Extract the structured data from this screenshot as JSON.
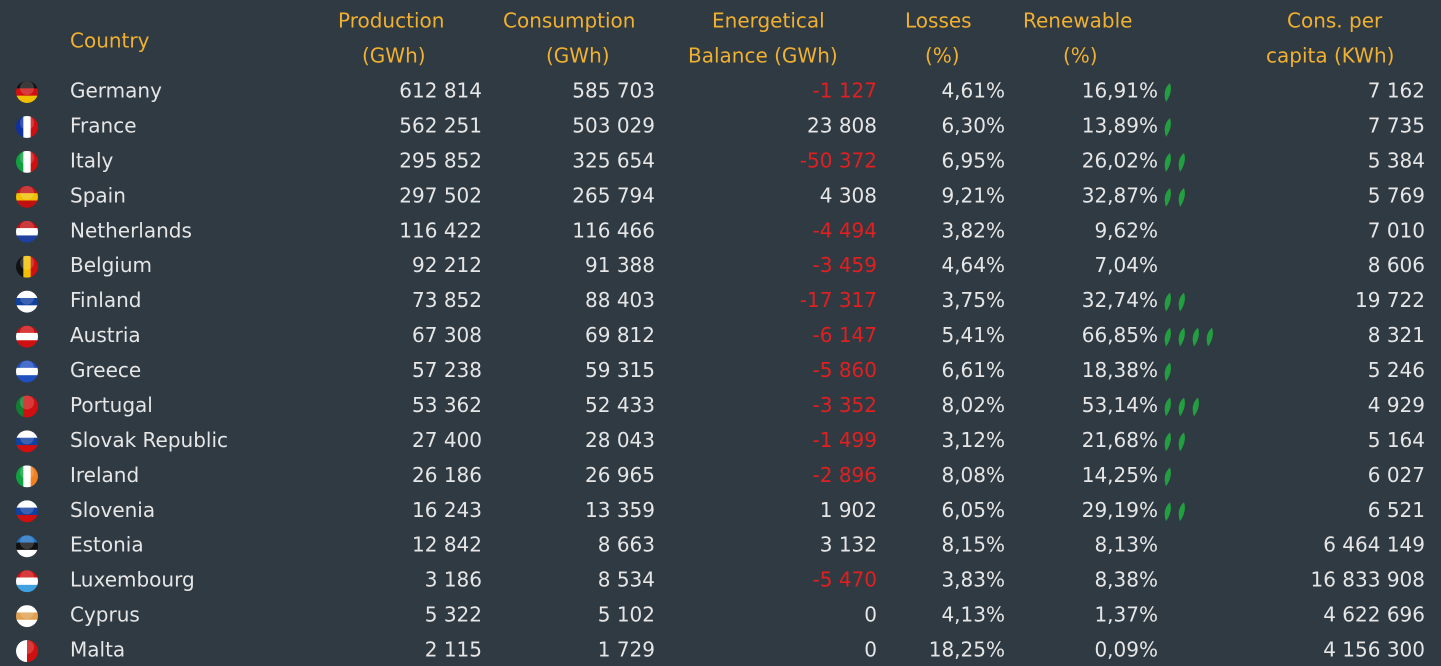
{
  "table": {
    "header": [
      [
        "Country"
      ],
      [
        "Production",
        "(GWh)"
      ],
      [
        "Consumption",
        "(GWh)"
      ],
      [
        "Energetical",
        "Balance (GWh)"
      ],
      [
        "Losses",
        "(%)"
      ],
      [
        "Renewable",
        "(%)"
      ],
      [
        "Cons. per",
        "capita (KWh)"
      ]
    ],
    "rows": [
      [
        "Germany",
        "612 814",
        "585 703",
        "-1 127",
        "4,61%",
        "16,91%",
        "7 162"
      ],
      [
        "France",
        "562 251",
        "503 029",
        "23 808",
        "6,30%",
        "13,89%",
        "7 735"
      ],
      [
        "Italy",
        "295 852",
        "325 654",
        "-50 372",
        "6,95%",
        "26,02%",
        "5 384"
      ],
      [
        "Spain",
        "297 502",
        "265 794",
        "4 308",
        "9,21%",
        "32,87%",
        "5 769"
      ],
      [
        "Netherlands",
        "116 422",
        "116 466",
        "-4 494",
        "3,82%",
        "9,62%",
        "7 010"
      ],
      [
        "Belgium",
        "92 212",
        "91 388",
        "-3 459",
        "4,64%",
        "7,04%",
        "8 606"
      ],
      [
        "Finland",
        "73 852",
        "88 403",
        "-17 317",
        "3,75%",
        "32,74%",
        "19 722"
      ],
      [
        "Austria",
        "67 308",
        "69 812",
        "-6 147",
        "5,41%",
        "66,85%",
        "8 321"
      ],
      [
        "Greece",
        "57 238",
        "59 315",
        "-5 860",
        "6,61%",
        "18,38%",
        "5 246"
      ],
      [
        "Portugal",
        "53 362",
        "52 433",
        "-3 352",
        "8,02%",
        "53,14%",
        "4 929"
      ],
      [
        "Slovak Republic",
        "27 400",
        "28 043",
        "-1 499",
        "3,12%",
        "21,68%",
        "5 164"
      ],
      [
        "Ireland",
        "26 186",
        "26 965",
        "-2 896",
        "8,08%",
        "14,25%",
        "6 027"
      ],
      [
        "Slovenia",
        "16 243",
        "13 359",
        "1 902",
        "6,05%",
        "29,19%",
        "6 521"
      ],
      [
        "Estonia",
        "12 842",
        "8 663",
        "3 132",
        "8,15%",
        "8,13%",
        "6 464 149"
      ],
      [
        "Luxembourg",
        "3 186",
        "8 534",
        "-5 470",
        "3,83%",
        "8,38%",
        "16 833 908"
      ],
      [
        "Cyprus",
        "5 322",
        "5 102",
        "0",
        "4,13%",
        "1,37%",
        "4 622 696"
      ],
      [
        "Malta",
        "2 115",
        "1 729",
        "0",
        "18,25%",
        "0,09%",
        "4 156 300"
      ]
    ]
  }
}
